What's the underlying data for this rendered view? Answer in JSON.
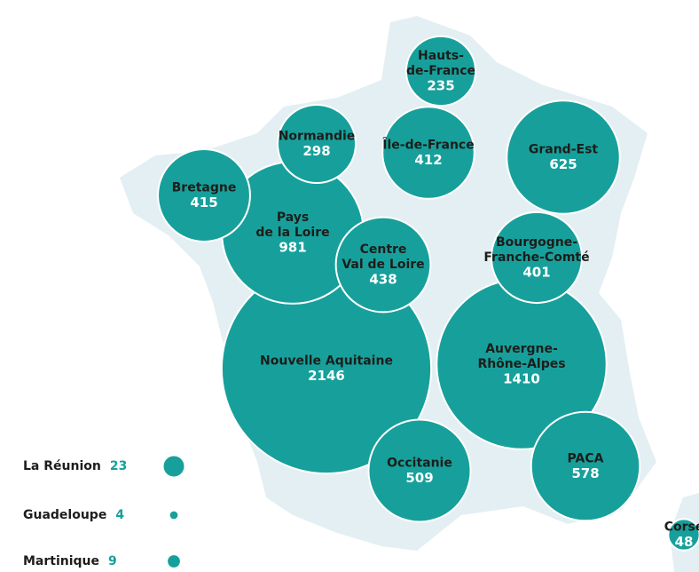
{
  "regions": [
    {
      "name_lines": [
        "Nouvelle Aquitaine"
      ],
      "value": 2146
    },
    {
      "name_lines": [
        "Auvergne-",
        "Rhône-Alpes"
      ],
      "value": 1410
    },
    {
      "name_lines": [
        "Pays",
        "de la Loire"
      ],
      "value": 981
    },
    {
      "name_lines": [
        "Grand-Est"
      ],
      "value": 625
    },
    {
      "name_lines": [
        "PACA"
      ],
      "value": 578
    },
    {
      "name_lines": [
        "Occitanie"
      ],
      "value": 509
    },
    {
      "name_lines": [
        "Centre",
        "Val de Loire"
      ],
      "value": 438
    },
    {
      "name_lines": [
        "Bretagne"
      ],
      "value": 415
    },
    {
      "name_lines": [
        "Île-de-France"
      ],
      "value": 412
    },
    {
      "name_lines": [
        "Bourgogne-",
        "Franche-Comté"
      ],
      "value": 401
    },
    {
      "name_lines": [
        "Normandie"
      ],
      "value": 298
    },
    {
      "name_lines": [
        "Hauts-",
        "de-France"
      ],
      "value": 235
    },
    {
      "name_lines": [
        "Corse"
      ],
      "value": 48
    }
  ],
  "overseas": [
    {
      "name": "La Réunion",
      "value": 23
    },
    {
      "name": "Guadeloupe",
      "value": 4
    },
    {
      "name": "Martinique",
      "value": 9
    }
  ]
}
